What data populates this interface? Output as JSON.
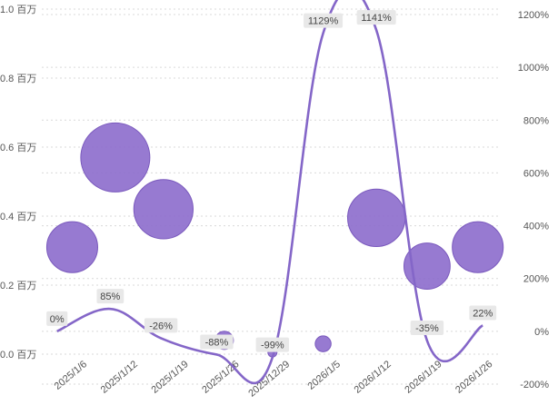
{
  "chart_data": {
    "type": "bubble+line",
    "categories": [
      "2025/1/6",
      "2025/1/12",
      "2025/1/19",
      "2025/1/26",
      "2025/12/29",
      "2026/1/5",
      "2026/1/12",
      "2026/1/19",
      "2026/1/26"
    ],
    "y_left": {
      "ticks": [
        0.0,
        0.2,
        0.4,
        0.6,
        0.8,
        1.0
      ],
      "tick_labels": [
        "0.0 百万",
        "0.2 百万",
        "0.4 百万",
        "0.6 百万",
        "0.8 百万",
        "1.0 百万"
      ],
      "range": [
        0,
        1.0
      ]
    },
    "y_right": {
      "ticks": [
        -200,
        0,
        200,
        400,
        600,
        800,
        1000,
        1200
      ],
      "tick_labels": [
        "-200%",
        "0%",
        "200%",
        "400%",
        "600%",
        "800%",
        "1000%",
        "1200%"
      ],
      "range": [
        -200,
        1200
      ]
    },
    "bubbles": [
      {
        "x": 0.6,
        "y": 0.31,
        "size": 0.31
      },
      {
        "x": 1.45,
        "y": 0.57,
        "size": 0.57
      },
      {
        "x": 2.4,
        "y": 0.42,
        "size": 0.42
      },
      {
        "x": 3.6,
        "y": 0.04,
        "size": 0.04
      },
      {
        "x": 4.55,
        "y": 0.005,
        "size": 0.005
      },
      {
        "x": 5.55,
        "y": 0.03,
        "size": 0.03
      },
      {
        "x": 6.6,
        "y": 0.395,
        "size": 0.395
      },
      {
        "x": 7.6,
        "y": 0.255,
        "size": 0.255
      },
      {
        "x": 8.6,
        "y": 0.31,
        "size": 0.31
      }
    ],
    "line": {
      "points": [
        {
          "x": 0.3,
          "y": 0
        },
        {
          "x": 1.35,
          "y": 85
        },
        {
          "x": 2.35,
          "y": -26
        },
        {
          "x": 3.45,
          "y": -88
        },
        {
          "x": 4.55,
          "y": -99
        },
        {
          "x": 5.55,
          "y": 1129
        },
        {
          "x": 6.6,
          "y": 1141
        },
        {
          "x": 7.6,
          "y": -35
        },
        {
          "x": 8.7,
          "y": 22
        }
      ],
      "labels": [
        "0%",
        "85%",
        "-26%",
        "-88%",
        "-99%",
        "1129%",
        "1141%",
        "-35%",
        "22%"
      ]
    },
    "colors": {
      "bubble": "#8c6bcc",
      "line": "#8466c8",
      "label_bg": "#e8e8e8"
    },
    "grid": true
  }
}
